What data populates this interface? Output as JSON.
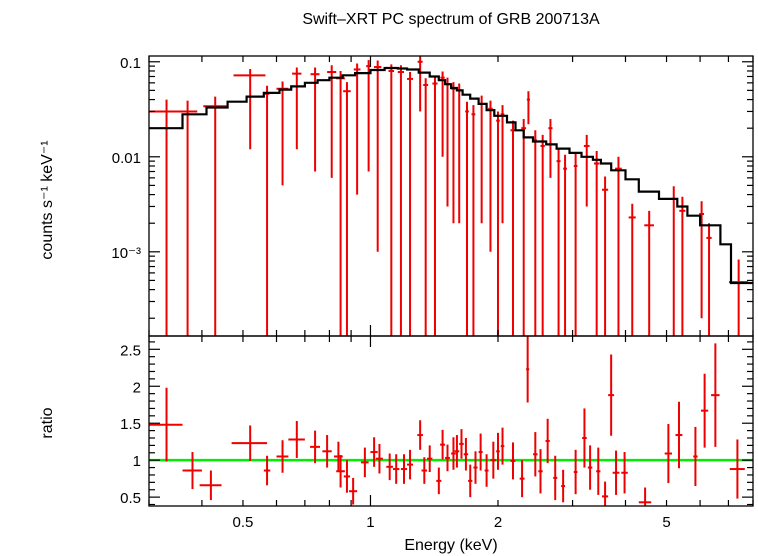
{
  "title": "Swift–XRT PC spectrum of GRB 200713A",
  "colors": {
    "data": "#ee0000",
    "model": "#000000",
    "unity": "#00ee00",
    "axes": "#000000"
  },
  "chart_data": [
    {
      "type": "line",
      "panel": "spectrum",
      "ylabel": "counts s⁻¹ keV⁻¹",
      "xscale": "log",
      "yscale": "log",
      "xlim": [
        0.3,
        8.0
      ],
      "ylim": [
        0.00013,
        0.115
      ],
      "yticks": [
        {
          "v": 0.1,
          "label": "0.1"
        },
        {
          "v": 0.01,
          "label": "0.01"
        },
        {
          "v": 0.001,
          "label": "10⁻³"
        }
      ],
      "series": [
        {
          "role": "data",
          "points": [
            [
              0.33,
              0.03,
              0.03,
              0.037,
              0.01
            ],
            [
              0.37,
              0.03,
              0.02,
              0.041,
              0.009
            ],
            [
              0.43,
              0.034,
              0.027,
              0.047,
              0.009
            ],
            [
              0.52,
              0.072,
              0.045,
              0.06,
              0.012
            ],
            [
              0.57,
              0.046,
              0.007,
              0.053,
              0.01
            ],
            [
              0.62,
              0.052,
              0.02,
              0.047,
              0.01
            ],
            [
              0.67,
              0.075,
              0.017,
              0.063,
              0.012
            ],
            [
              0.74,
              0.074,
              0.018,
              0.067,
              0.013
            ],
            [
              0.81,
              0.078,
              0.02,
              0.072,
              0.014
            ],
            [
              0.85,
              0.067,
              0.02,
              0.075,
              0.013
            ],
            [
              0.88,
              0.049,
              0.018,
              0.078,
              0.012
            ],
            [
              0.93,
              0.083,
              0.017,
              0.079,
              0.013
            ],
            [
              0.99,
              0.09,
              0.013,
              0.083,
              0.014
            ],
            [
              1.04,
              0.088,
              0.021,
              0.087,
              0.015
            ],
            [
              1.12,
              0.08,
              0.017,
              0.088,
              0.014
            ],
            [
              1.18,
              0.078,
              0.02,
              0.088,
              0.014
            ],
            [
              1.24,
              0.066,
              0.02,
              0.085,
              0.012
            ],
            [
              1.31,
              0.1,
              0.018,
              0.07,
              0.016
            ],
            [
              1.35,
              0.057,
              0.018,
              0.065,
              0.01
            ],
            [
              1.42,
              0.059,
              0.02,
              0.062,
              0.01
            ],
            [
              1.48,
              0.068,
              0.017,
              0.058,
              0.011
            ],
            [
              1.52,
              0.058,
              0.018,
              0.055,
              0.01
            ],
            [
              1.57,
              0.052,
              0.018,
              0.05,
              0.009
            ],
            [
              1.62,
              0.05,
              0.02,
              0.048,
              0.009
            ],
            [
              1.69,
              0.03,
              0.017,
              0.043,
              0.008
            ],
            [
              1.75,
              0.028,
              0.018,
              0.04,
              0.007
            ],
            [
              1.83,
              0.036,
              0.024,
              0.034,
              0.008
            ],
            [
              1.92,
              0.032,
              0.024,
              0.031,
              0.007
            ],
            [
              2.0,
              0.024,
              0.02,
              0.028,
              0.006
            ],
            [
              2.05,
              0.028,
              0.02,
              0.026,
              0.007
            ],
            [
              2.17,
              0.019,
              0.03,
              0.022,
              0.005
            ],
            [
              2.3,
              0.02,
              0.03,
              0.02,
              0.005
            ],
            [
              2.36,
              0.04,
              0.02,
              0.018,
              0.009
            ],
            [
              2.45,
              0.015,
              0.02,
              0.016,
              0.004
            ],
            [
              2.55,
              0.013,
              0.03,
              0.015,
              0.004
            ],
            [
              2.66,
              0.02,
              0.03,
              0.014,
              0.005
            ],
            [
              2.78,
              0.009,
              0.03,
              0.013,
              0.003
            ],
            [
              2.88,
              0.0075,
              0.03,
              0.012,
              0.003
            ],
            [
              3.05,
              0.008,
              0.03,
              0.011,
              0.003
            ],
            [
              3.24,
              0.013,
              0.05,
              0.01,
              0.004
            ],
            [
              3.42,
              0.0085,
              0.05,
              0.009,
              0.003
            ],
            [
              3.58,
              0.0045,
              0.06,
              0.0085,
              0.0017
            ],
            [
              3.85,
              0.0075,
              0.07,
              0.0075,
              0.0025
            ],
            [
              4.15,
              0.0023,
              0.08,
              0.006,
              0.0009
            ],
            [
              4.55,
              0.0019,
              0.12,
              0.0045,
              0.0008
            ],
            [
              5.2,
              0.0036,
              0.12,
              0.0035,
              0.0013
            ],
            [
              5.45,
              0.0027,
              0.09,
              0.0033,
              0.0011
            ],
            [
              6.05,
              0.0025,
              0.08,
              0.0023,
              0.0009
            ],
            [
              6.3,
              0.0014,
              0.09,
              0.002,
              0.0006
            ],
            [
              7.4,
              0.00048,
              0.38,
              0.0004,
              0.00035
            ]
          ]
        },
        {
          "role": "model",
          "steps": [
            [
              0.3,
              0.36,
              0.02
            ],
            [
              0.36,
              0.41,
              0.028
            ],
            [
              0.41,
              0.46,
              0.033
            ],
            [
              0.46,
              0.51,
              0.038
            ],
            [
              0.51,
              0.56,
              0.043
            ],
            [
              0.56,
              0.61,
              0.047
            ],
            [
              0.61,
              0.65,
              0.051
            ],
            [
              0.65,
              0.7,
              0.055
            ],
            [
              0.7,
              0.75,
              0.06
            ],
            [
              0.75,
              0.8,
              0.064
            ],
            [
              0.8,
              0.86,
              0.068
            ],
            [
              0.86,
              0.92,
              0.072
            ],
            [
              0.92,
              1.0,
              0.076
            ],
            [
              1.0,
              1.08,
              0.082
            ],
            [
              1.08,
              1.16,
              0.086
            ],
            [
              1.16,
              1.22,
              0.085
            ],
            [
              1.22,
              1.3,
              0.083
            ],
            [
              1.3,
              1.38,
              0.077
            ],
            [
              1.38,
              1.45,
              0.07
            ],
            [
              1.45,
              1.5,
              0.064
            ],
            [
              1.5,
              1.55,
              0.058
            ],
            [
              1.55,
              1.6,
              0.053
            ],
            [
              1.6,
              1.65,
              0.05
            ],
            [
              1.65,
              1.72,
              0.045
            ],
            [
              1.72,
              1.8,
              0.041
            ],
            [
              1.8,
              1.88,
              0.036
            ],
            [
              1.88,
              1.96,
              0.031
            ],
            [
              1.96,
              2.1,
              0.027
            ],
            [
              2.1,
              2.2,
              0.023
            ],
            [
              2.2,
              2.3,
              0.019
            ],
            [
              2.3,
              2.42,
              0.016
            ],
            [
              2.42,
              2.6,
              0.0145
            ],
            [
              2.6,
              2.75,
              0.0135
            ],
            [
              2.75,
              2.95,
              0.0122
            ],
            [
              2.95,
              3.15,
              0.011
            ],
            [
              3.15,
              3.35,
              0.01
            ],
            [
              3.35,
              3.5,
              0.0093
            ],
            [
              3.5,
              3.7,
              0.0085
            ],
            [
              3.7,
              4.0,
              0.0072
            ],
            [
              4.0,
              4.3,
              0.0058
            ],
            [
              4.3,
              4.8,
              0.0043
            ],
            [
              4.8,
              5.3,
              0.0036
            ],
            [
              5.3,
              5.6,
              0.003
            ],
            [
              5.6,
              6.0,
              0.0024
            ],
            [
              6.0,
              6.7,
              0.0019
            ],
            [
              6.7,
              7.1,
              0.0012
            ],
            [
              7.1,
              8.0,
              0.00047
            ]
          ]
        }
      ]
    },
    {
      "type": "scatter",
      "panel": "ratio",
      "ylabel": "ratio",
      "xlabel": "Energy (keV)",
      "xscale": "log",
      "xlim": [
        0.3,
        8.0
      ],
      "ylim": [
        0.38,
        2.68
      ],
      "yticks": [
        {
          "v": 0.5,
          "label": "0.5"
        },
        {
          "v": 1,
          "label": "1"
        },
        {
          "v": 1.5,
          "label": "1.5"
        },
        {
          "v": 2,
          "label": "2"
        },
        {
          "v": 2.5,
          "label": "2.5"
        }
      ],
      "xticks": [
        {
          "v": 0.5,
          "label": "0.5"
        },
        {
          "v": 1,
          "label": "1"
        },
        {
          "v": 2,
          "label": "2"
        },
        {
          "v": 5,
          "label": "5"
        }
      ],
      "reference": 1.0,
      "points": [
        [
          0.33,
          1.48,
          0.03,
          0.5
        ],
        [
          0.38,
          0.86,
          0.02,
          0.25
        ],
        [
          0.42,
          0.66,
          0.025,
          0.2
        ],
        [
          0.52,
          1.23,
          0.05,
          0.24
        ],
        [
          0.57,
          0.86,
          0.01,
          0.2
        ],
        [
          0.62,
          1.05,
          0.02,
          0.22
        ],
        [
          0.67,
          1.28,
          0.03,
          0.25
        ],
        [
          0.74,
          1.18,
          0.02,
          0.22
        ],
        [
          0.79,
          1.12,
          0.02,
          0.22
        ],
        [
          0.84,
          1.05,
          0.02,
          0.2
        ],
        [
          0.85,
          0.85,
          0.02,
          0.22
        ],
        [
          0.88,
          0.78,
          0.015,
          0.22
        ],
        [
          0.91,
          0.58,
          0.02,
          0.18
        ],
        [
          0.97,
          0.97,
          0.02,
          0.2
        ],
        [
          1.02,
          1.11,
          0.02,
          0.2
        ],
        [
          1.05,
          1.02,
          0.02,
          0.2
        ],
        [
          1.11,
          0.91,
          0.02,
          0.18
        ],
        [
          1.15,
          0.88,
          0.02,
          0.2
        ],
        [
          1.2,
          0.88,
          0.02,
          0.2
        ],
        [
          1.24,
          0.94,
          0.02,
          0.2
        ],
        [
          1.31,
          1.34,
          0.02,
          0.2
        ],
        [
          1.34,
          0.86,
          0.02,
          0.18
        ],
        [
          1.38,
          1.02,
          0.02,
          0.18
        ],
        [
          1.45,
          0.72,
          0.02,
          0.18
        ],
        [
          1.48,
          1.21,
          0.02,
          0.2
        ],
        [
          1.52,
          1.03,
          0.02,
          0.18
        ],
        [
          1.57,
          1.09,
          0.02,
          0.22
        ],
        [
          1.6,
          1.12,
          0.02,
          0.22
        ],
        [
          1.64,
          1.22,
          0.02,
          0.2
        ],
        [
          1.68,
          1.08,
          0.02,
          0.22
        ],
        [
          1.72,
          0.72,
          0.02,
          0.22
        ],
        [
          1.77,
          0.9,
          0.02,
          0.22
        ],
        [
          1.82,
          1.11,
          0.02,
          0.25
        ],
        [
          1.88,
          0.86,
          0.02,
          0.22
        ],
        [
          1.95,
          1.0,
          0.03,
          0.25
        ],
        [
          2.0,
          1.12,
          0.02,
          0.25
        ],
        [
          2.05,
          1.19,
          0.02,
          0.25
        ],
        [
          2.17,
          0.99,
          0.03,
          0.25
        ],
        [
          2.28,
          0.75,
          0.03,
          0.25
        ],
        [
          2.35,
          2.23,
          0.02,
          0.45
        ],
        [
          2.45,
          1.08,
          0.03,
          0.3
        ],
        [
          2.52,
          0.85,
          0.03,
          0.3
        ],
        [
          2.62,
          1.26,
          0.03,
          0.3
        ],
        [
          2.73,
          0.76,
          0.03,
          0.3
        ],
        [
          2.85,
          0.65,
          0.03,
          0.22
        ],
        [
          3.05,
          0.84,
          0.03,
          0.3
        ],
        [
          3.2,
          1.3,
          0.04,
          0.4
        ],
        [
          3.3,
          0.9,
          0.04,
          0.3
        ],
        [
          3.45,
          0.85,
          0.04,
          0.32
        ],
        [
          3.58,
          0.51,
          0.06,
          0.2
        ],
        [
          3.7,
          1.88,
          0.06,
          0.55
        ],
        [
          3.8,
          0.83,
          0.07,
          0.3
        ],
        [
          3.98,
          0.83,
          0.07,
          0.28
        ],
        [
          4.45,
          0.43,
          0.15,
          0.2
        ],
        [
          5.05,
          1.09,
          0.1,
          0.4
        ],
        [
          5.35,
          1.34,
          0.1,
          0.45
        ],
        [
          5.85,
          1.05,
          0.07,
          0.4
        ],
        [
          6.15,
          1.67,
          0.12,
          0.5
        ],
        [
          6.52,
          1.88,
          0.15,
          0.7
        ],
        [
          7.35,
          0.88,
          0.3,
          0.4
        ]
      ]
    }
  ]
}
